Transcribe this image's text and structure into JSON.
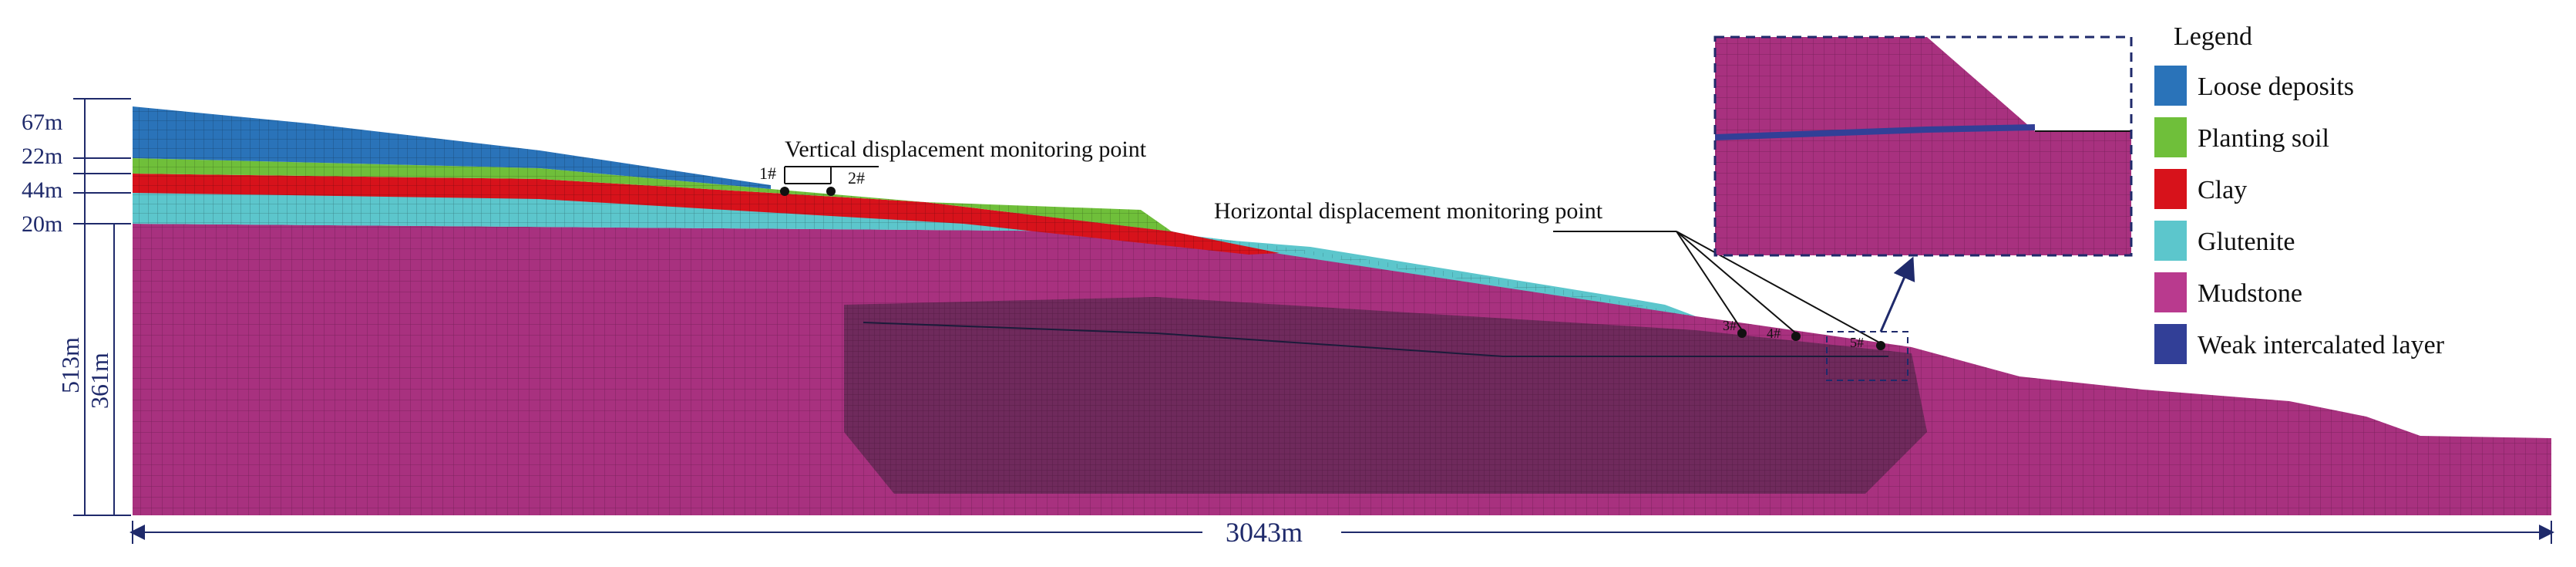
{
  "figure": {
    "dimensions": {
      "layer_thicknesses": [
        "67m",
        "22m",
        "44m",
        "20m"
      ],
      "total_height": "513m",
      "mudstone_height": "361m",
      "total_width": "3043m"
    },
    "annotations": {
      "vertical_monitoring": "Vertical displacement monitoring point",
      "vertical_points": [
        "1#",
        "2#"
      ],
      "horizontal_monitoring": "Horizontal displacement monitoring point",
      "horizontal_points": [
        "3#",
        "4#",
        "5#"
      ]
    },
    "legend": {
      "title": "Legend",
      "items": [
        {
          "label": "Loose deposits",
          "color": "#2a73b9"
        },
        {
          "label": "Planting soil",
          "color": "#6fbf3a"
        },
        {
          "label": "Clay",
          "color": "#d7121b"
        },
        {
          "label": "Glutenite",
          "color": "#5cc6cc"
        },
        {
          "label": "Mudstone",
          "color": "#b93a8e"
        },
        {
          "label": "Weak intercalated layer",
          "color": "#323f97"
        }
      ]
    },
    "colors": {
      "mudstone": "#a8317f",
      "mudstone_dense": "#6f2a5c",
      "dimension_lines": "#1f2a6b"
    }
  }
}
